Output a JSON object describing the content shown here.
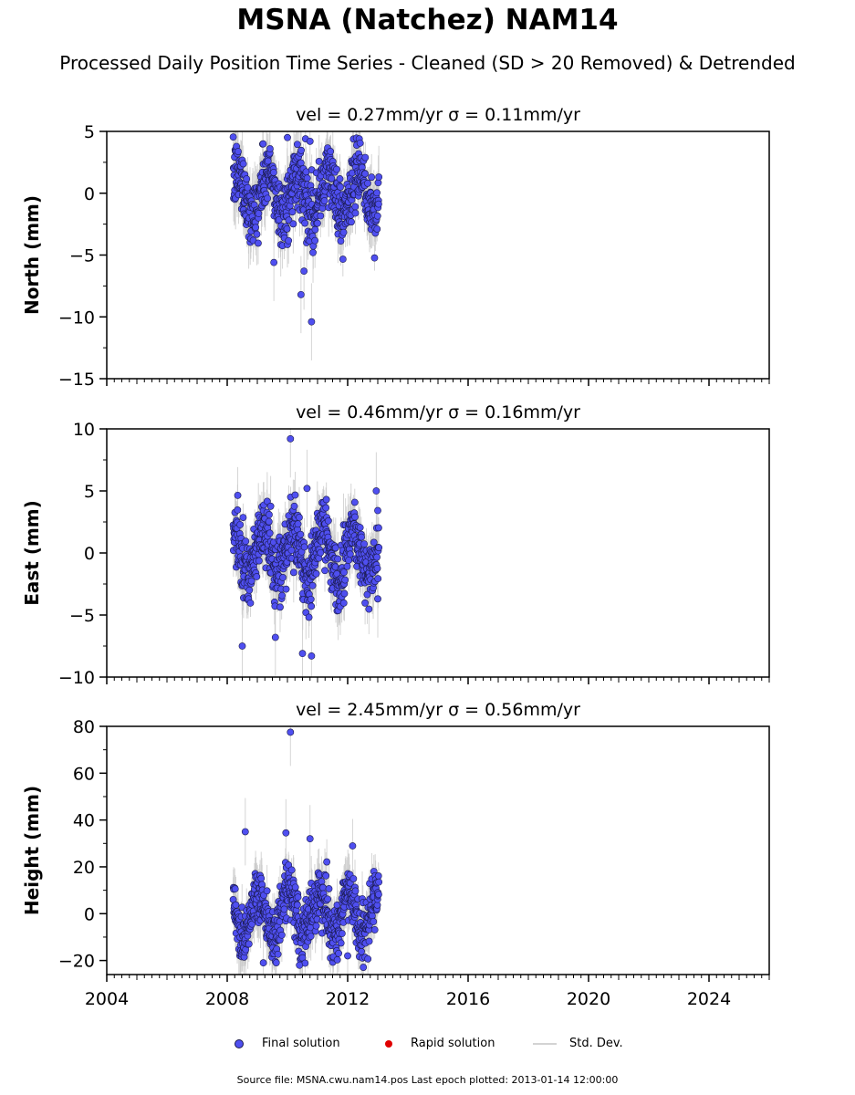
{
  "title": "MSNA (Natchez) NAM14",
  "subtitle": "Processed Daily Position Time Series - Cleaned (SD > 20 Removed) & Detrended",
  "legend": {
    "final": "Final solution",
    "rapid": "Rapid solution",
    "std": "Std. Dev."
  },
  "footer": "Source file: MSNA.cwu.nam14.pos  Last epoch plotted: 2013-01-14 12:00:00",
  "colors": {
    "final": "#4f4ff0",
    "rapid": "#e00000",
    "std": "#c8c8c8",
    "edge": "#1a1a4d"
  },
  "chart_data": [
    {
      "type": "scatter",
      "title": "vel = 0.27mm/yr   σ = 0.11mm/yr",
      "vel": "0.27mm/yr",
      "sigma": "0.11mm/yr",
      "ylabel": "North (mm)",
      "xlim": [
        2004,
        2026
      ],
      "ylim": [
        -15,
        5
      ],
      "yticks": [
        -15,
        -10,
        -5,
        0,
        5
      ],
      "xticks": [
        2004,
        2008,
        2012,
        2016,
        2020,
        2024
      ],
      "data_span": [
        2008.2,
        2013.04
      ],
      "annual_amplitude": 1.6,
      "noise": 1.3,
      "outliers": [
        [
          2009.55,
          -5.6
        ],
        [
          2010.45,
          -8.2
        ],
        [
          2010.55,
          -6.3
        ],
        [
          2010.8,
          -10.4
        ],
        [
          2010.0,
          4.5
        ],
        [
          2010.6,
          4.4
        ],
        [
          2010.75,
          4.2
        ]
      ]
    },
    {
      "type": "scatter",
      "title": "vel = 0.46mm/yr   σ = 0.16mm/yr",
      "vel": "0.46mm/yr",
      "sigma": "0.16mm/yr",
      "ylabel": "East (mm)",
      "xlim": [
        2004,
        2026
      ],
      "ylim": [
        -10,
        10
      ],
      "yticks": [
        -10,
        -5,
        0,
        5,
        10
      ],
      "xticks": [
        2004,
        2008,
        2012,
        2016,
        2020,
        2024
      ],
      "data_span": [
        2008.2,
        2013.04
      ],
      "annual_amplitude": 2.0,
      "noise": 1.3,
      "outliers": [
        [
          2010.1,
          9.2
        ],
        [
          2010.65,
          5.2
        ],
        [
          2008.5,
          -7.5
        ],
        [
          2009.6,
          -6.8
        ],
        [
          2010.5,
          -8.1
        ],
        [
          2010.8,
          -8.3
        ],
        [
          2012.95,
          5.0
        ],
        [
          2013.0,
          -3.7
        ]
      ]
    },
    {
      "type": "scatter",
      "title": "vel = 2.45mm/yr   σ = 0.56mm/yr",
      "vel": "2.45mm/yr",
      "sigma": "0.56mm/yr",
      "ylabel": "Height (mm)",
      "xlim": [
        2004,
        2026
      ],
      "ylim": [
        -26,
        80
      ],
      "yticks": [
        -20,
        0,
        20,
        40,
        60,
        80
      ],
      "xticks": [
        2004,
        2008,
        2012,
        2016,
        2020,
        2024
      ],
      "data_span": [
        2008.2,
        2013.04
      ],
      "annual_amplitude": 9.0,
      "noise": 6.0,
      "outliers": [
        [
          2010.1,
          77.5
        ],
        [
          2008.6,
          35.0
        ],
        [
          2009.95,
          34.5
        ],
        [
          2010.75,
          32.0
        ],
        [
          2009.2,
          -21.0
        ],
        [
          2010.4,
          -22.0
        ],
        [
          2012.0,
          -18.0
        ]
      ]
    }
  ]
}
